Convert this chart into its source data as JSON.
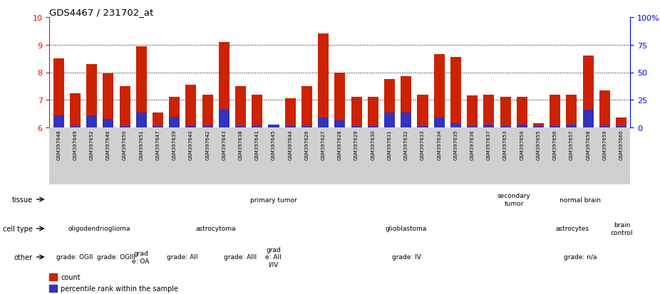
{
  "title": "GDS4467 / 231702_at",
  "samples": [
    "GSM397648",
    "GSM397649",
    "GSM397652",
    "GSM397646",
    "GSM397650",
    "GSM397651",
    "GSM397647",
    "GSM397639",
    "GSM397640",
    "GSM397642",
    "GSM397643",
    "GSM397638",
    "GSM397641",
    "GSM397645",
    "GSM397644",
    "GSM397626",
    "GSM397627",
    "GSM397628",
    "GSM397629",
    "GSM397630",
    "GSM397631",
    "GSM397632",
    "GSM397633",
    "GSM397634",
    "GSM397635",
    "GSM397636",
    "GSM397637",
    "GSM397653",
    "GSM397654",
    "GSM397655",
    "GSM397656",
    "GSM397657",
    "GSM397658",
    "GSM397659",
    "GSM397660"
  ],
  "red_values": [
    8.5,
    7.25,
    8.3,
    7.95,
    7.5,
    8.93,
    6.55,
    7.1,
    7.55,
    7.2,
    9.1,
    7.5,
    7.2,
    6.1,
    7.05,
    7.5,
    9.4,
    8.0,
    7.1,
    7.1,
    7.75,
    7.85,
    7.2,
    8.65,
    8.55,
    7.15,
    7.2,
    7.1,
    7.1,
    6.15,
    7.2,
    7.2,
    8.6,
    7.35,
    6.35
  ],
  "blue_values": [
    6.45,
    6.05,
    6.45,
    6.3,
    6.05,
    6.55,
    6.05,
    6.4,
    6.05,
    6.05,
    6.65,
    6.05,
    6.05,
    6.1,
    6.05,
    6.05,
    6.35,
    6.25,
    6.05,
    6.05,
    6.55,
    6.55,
    6.05,
    6.35,
    6.15,
    6.05,
    6.1,
    6.05,
    6.1,
    6.05,
    6.05,
    6.1,
    6.65,
    6.05,
    6.05
  ],
  "ymin": 6,
  "ymax": 10,
  "yticks_left": [
    6,
    7,
    8,
    9,
    10
  ],
  "yticks_right": [
    0,
    25,
    50,
    75,
    100
  ],
  "bar_color": "#cc2200",
  "blue_color": "#3333bb",
  "grid_ticks": [
    7,
    8,
    9
  ],
  "tissue_groups": [
    {
      "label": "primary tumor",
      "start": 0,
      "end": 27,
      "color": "#c8e8c8"
    },
    {
      "label": "secondary\ntumor",
      "start": 27,
      "end": 29,
      "color": "#a8d8a8"
    },
    {
      "label": "normal brain",
      "start": 29,
      "end": 35,
      "color": "#44bb44"
    }
  ],
  "celltype_groups": [
    {
      "label": "oligodendrioglioma",
      "start": 0,
      "end": 6,
      "color": "#ccbbee"
    },
    {
      "label": "astrocytoma",
      "start": 6,
      "end": 14,
      "color": "#bbaadd"
    },
    {
      "label": "glioblastoma",
      "start": 14,
      "end": 29,
      "color": "#9988cc"
    },
    {
      "label": "astrocytes",
      "start": 29,
      "end": 34,
      "color": "#aaddaa"
    },
    {
      "label": "brain\ncontrol",
      "start": 34,
      "end": 35,
      "color": "#9988cc"
    }
  ],
  "other_groups": [
    {
      "label": "grade: OGII",
      "start": 0,
      "end": 3,
      "color": "#e88877"
    },
    {
      "label": "grade: OGIII",
      "start": 3,
      "end": 5,
      "color": "#e88877"
    },
    {
      "label": "grad\ne: OA",
      "start": 5,
      "end": 6,
      "color": "#e88877"
    },
    {
      "label": "grade: AII",
      "start": 6,
      "end": 10,
      "color": "#e88877"
    },
    {
      "label": "grade: AIII",
      "start": 10,
      "end": 13,
      "color": "#e88877"
    },
    {
      "label": "grad\ne: AII\nI/IV",
      "start": 13,
      "end": 14,
      "color": "#e88877"
    },
    {
      "label": "grade: IV",
      "start": 14,
      "end": 29,
      "color": "#e88877"
    },
    {
      "label": "grade: n/a",
      "start": 29,
      "end": 35,
      "color": "#e88877"
    }
  ],
  "xtick_bg": "#d0d0d0",
  "separator_color": "#888888"
}
